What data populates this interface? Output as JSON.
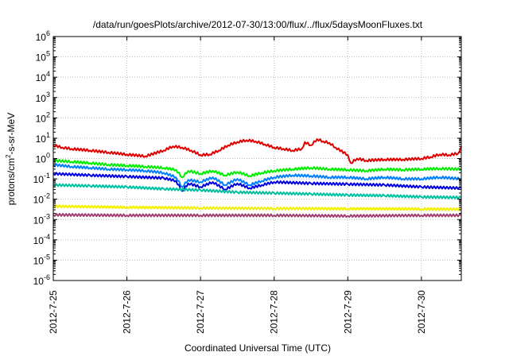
{
  "chart_data": {
    "type": "line",
    "title": "/data/run/goesPlots/archive/2012-07-30/13:00/flux/../flux/5daysMoonFluxes.txt",
    "xlabel": "Coordinated Universal Time (UTC)",
    "ylabel": {
      "pre": "protons/cm",
      "sup": "2",
      "post": "-s-sr-MeV"
    },
    "xlim": [
      "2012-07-25",
      "2012-07-30 13:00"
    ],
    "ylim": [
      1e-06,
      1000000.0
    ],
    "yscale": "log",
    "grid": true,
    "xticks": [
      {
        "value": "2012-07-25",
        "label": "2012-7-25"
      },
      {
        "value": "2012-07-26",
        "label": "2012-7-26"
      },
      {
        "value": "2012-07-27",
        "label": "2012-7-27"
      },
      {
        "value": "2012-07-28",
        "label": "2012-7-28"
      },
      {
        "value": "2012-07-29",
        "label": "2012-7-29"
      },
      {
        "value": "2012-07-30",
        "label": "2012-7-30"
      }
    ],
    "yticks": [
      {
        "value": 1e-06,
        "base": "10",
        "exp": "-6"
      },
      {
        "value": 1e-05,
        "base": "10",
        "exp": "-5"
      },
      {
        "value": 0.0001,
        "base": "10",
        "exp": "-4"
      },
      {
        "value": 0.001,
        "base": "10",
        "exp": "-3"
      },
      {
        "value": 0.01,
        "base": "10",
        "exp": "-2"
      },
      {
        "value": 0.1,
        "base": "10",
        "exp": "-1"
      },
      {
        "value": 1,
        "base": "10",
        "exp": "0"
      },
      {
        "value": 10.0,
        "base": "10",
        "exp": "1"
      },
      {
        "value": 100.0,
        "base": "10",
        "exp": "2"
      },
      {
        "value": 1000.0,
        "base": "10",
        "exp": "3"
      },
      {
        "value": 10000.0,
        "base": "10",
        "exp": "4"
      },
      {
        "value": 100000.0,
        "base": "10",
        "exp": "5"
      },
      {
        "value": 1000000.0,
        "base": "10",
        "exp": "6"
      }
    ],
    "series": [
      {
        "color": "#e00000",
        "x": [
          "2012-07-25 00:00",
          "2012-07-25 03:00",
          "2012-07-25 06:00",
          "2012-07-25 12:00",
          "2012-07-25 18:00",
          "2012-07-26 00:00",
          "2012-07-26 06:00",
          "2012-07-26 12:00",
          "2012-07-26 15:00",
          "2012-07-26 18:00",
          "2012-07-26 21:00",
          "2012-07-27 00:00",
          "2012-07-27 03:00",
          "2012-07-27 06:00",
          "2012-07-27 09:00",
          "2012-07-27 12:00",
          "2012-07-27 15:00",
          "2012-07-27 18:00",
          "2012-07-27 21:00",
          "2012-07-28 00:00",
          "2012-07-28 03:00",
          "2012-07-28 06:00",
          "2012-07-28 09:00",
          "2012-07-28 10:00",
          "2012-07-28 12:00",
          "2012-07-28 14:00",
          "2012-07-28 16:00",
          "2012-07-28 18:00",
          "2012-07-28 20:00",
          "2012-07-29 00:00",
          "2012-07-29 01:00",
          "2012-07-29 03:00",
          "2012-07-29 06:00",
          "2012-07-29 12:00",
          "2012-07-29 18:00",
          "2012-07-30 00:00",
          "2012-07-30 03:00",
          "2012-07-30 06:00",
          "2012-07-30 09:00",
          "2012-07-30 12:00",
          "2012-07-30 13:00"
        ],
        "values": [
          4.5,
          3.5,
          3.0,
          2.5,
          2.0,
          1.6,
          1.3,
          2.5,
          4.0,
          3.5,
          2.5,
          1.5,
          1.6,
          2.5,
          4.5,
          6.5,
          8.0,
          7.0,
          5.0,
          3.5,
          3.0,
          2.5,
          3.0,
          6.5,
          4.5,
          9.0,
          7.0,
          6.0,
          3.5,
          1.5,
          0.6,
          1.0,
          0.8,
          0.9,
          0.9,
          1.0,
          1.2,
          1.6,
          1.5,
          1.8,
          4.0
        ]
      },
      {
        "color": "#00ee00",
        "x": [
          "2012-07-25 00:00",
          "2012-07-25 06:00",
          "2012-07-25 12:00",
          "2012-07-25 18:00",
          "2012-07-26 00:00",
          "2012-07-26 06:00",
          "2012-07-26 12:00",
          "2012-07-26 16:00",
          "2012-07-26 18:00",
          "2012-07-26 20:00",
          "2012-07-27 00:00",
          "2012-07-27 04:00",
          "2012-07-27 08:00",
          "2012-07-27 12:00",
          "2012-07-27 16:00",
          "2012-07-27 20:00",
          "2012-07-28 00:00",
          "2012-07-28 06:00",
          "2012-07-28 12:00",
          "2012-07-28 18:00",
          "2012-07-29 00:00",
          "2012-07-29 06:00",
          "2012-07-29 12:00",
          "2012-07-29 18:00",
          "2012-07-30 00:00",
          "2012-07-30 06:00",
          "2012-07-30 13:00"
        ],
        "values": [
          0.8,
          0.7,
          0.6,
          0.5,
          0.45,
          0.4,
          0.35,
          0.28,
          0.12,
          0.25,
          0.18,
          0.25,
          0.15,
          0.22,
          0.14,
          0.2,
          0.25,
          0.3,
          0.35,
          0.3,
          0.28,
          0.25,
          0.3,
          0.28,
          0.3,
          0.32,
          0.3
        ]
      },
      {
        "color": "#0080ff",
        "x": [
          "2012-07-25 00:00",
          "2012-07-25 06:00",
          "2012-07-25 12:00",
          "2012-07-25 18:00",
          "2012-07-26 00:00",
          "2012-07-26 06:00",
          "2012-07-26 12:00",
          "2012-07-26 16:00",
          "2012-07-26 18:00",
          "2012-07-26 20:00",
          "2012-07-27 00:00",
          "2012-07-27 04:00",
          "2012-07-27 08:00",
          "2012-07-27 12:00",
          "2012-07-27 16:00",
          "2012-07-27 20:00",
          "2012-07-28 00:00",
          "2012-07-28 06:00",
          "2012-07-28 12:00",
          "2012-07-28 18:00",
          "2012-07-29 00:00",
          "2012-07-29 06:00",
          "2012-07-29 12:00",
          "2012-07-29 18:00",
          "2012-07-30 00:00",
          "2012-07-30 06:00",
          "2012-07-30 13:00"
        ],
        "values": [
          0.5,
          0.4,
          0.35,
          0.3,
          0.28,
          0.25,
          0.2,
          0.12,
          0.04,
          0.09,
          0.07,
          0.12,
          0.05,
          0.1,
          0.05,
          0.08,
          0.12,
          0.15,
          0.14,
          0.12,
          0.12,
          0.1,
          0.12,
          0.1,
          0.1,
          0.12,
          0.1
        ]
      },
      {
        "color": "#0000dd",
        "x": [
          "2012-07-25 00:00",
          "2012-07-25 12:00",
          "2012-07-26 00:00",
          "2012-07-26 12:00",
          "2012-07-26 16:00",
          "2012-07-26 18:00",
          "2012-07-26 20:00",
          "2012-07-27 00:00",
          "2012-07-27 04:00",
          "2012-07-27 08:00",
          "2012-07-27 12:00",
          "2012-07-27 16:00",
          "2012-07-27 20:00",
          "2012-07-28 00:00",
          "2012-07-28 12:00",
          "2012-07-29 00:00",
          "2012-07-29 12:00",
          "2012-07-30 00:00",
          "2012-07-30 13:00"
        ],
        "values": [
          0.18,
          0.15,
          0.13,
          0.11,
          0.08,
          0.025,
          0.06,
          0.04,
          0.07,
          0.03,
          0.06,
          0.035,
          0.05,
          0.07,
          0.06,
          0.055,
          0.05,
          0.04,
          0.035
        ]
      },
      {
        "color": "#00c0a0",
        "x": [
          "2012-07-25 00:00",
          "2012-07-25 12:00",
          "2012-07-26 00:00",
          "2012-07-26 12:00",
          "2012-07-27 00:00",
          "2012-07-27 12:00",
          "2012-07-28 00:00",
          "2012-07-28 12:00",
          "2012-07-29 00:00",
          "2012-07-29 12:00",
          "2012-07-30 00:00",
          "2012-07-30 13:00"
        ],
        "values": [
          0.05,
          0.045,
          0.04,
          0.032,
          0.028,
          0.022,
          0.02,
          0.018,
          0.016,
          0.015,
          0.013,
          0.012
        ]
      },
      {
        "color": "#f0f000",
        "x": [
          "2012-07-25 00:00",
          "2012-07-26 00:00",
          "2012-07-27 00:00",
          "2012-07-28 00:00",
          "2012-07-29 00:00",
          "2012-07-30 00:00",
          "2012-07-30 13:00"
        ],
        "values": [
          0.0045,
          0.004,
          0.0037,
          0.0035,
          0.0034,
          0.0033,
          0.0032
        ]
      },
      {
        "color": "#a04070",
        "x": [
          "2012-07-25 00:00",
          "2012-07-26 00:00",
          "2012-07-27 00:00",
          "2012-07-28 00:00",
          "2012-07-29 00:00",
          "2012-07-30 00:00",
          "2012-07-30 13:00"
        ],
        "values": [
          0.0017,
          0.0016,
          0.0016,
          0.0016,
          0.0015,
          0.0016,
          0.0016
        ]
      }
    ]
  }
}
